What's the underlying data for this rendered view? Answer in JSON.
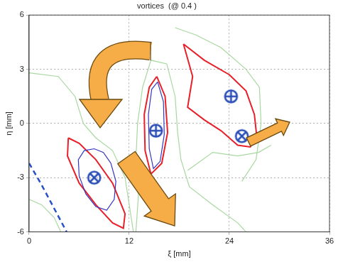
{
  "chart_data": {
    "type": "contour",
    "title": "vortices  (@ 0.4 )",
    "x_label": "ξ [mm]",
    "y_label": "η [mm]",
    "xlim": [
      0,
      36
    ],
    "ylim": [
      -6,
      6
    ],
    "xticks": [
      0,
      12,
      24,
      36
    ],
    "yticks": [
      -6,
      -3,
      0,
      3,
      6
    ],
    "grid": true,
    "series": [
      {
        "type": "line",
        "color": "#a8d8a0",
        "line_style": "solid",
        "x": [
          0,
          3.5,
          5.5,
          6.5,
          8,
          10,
          11.5,
          12,
          12.5
        ],
        "values": [
          2.8,
          2.6,
          1.5,
          0,
          -0.8,
          -1.5,
          -3,
          -4.5,
          -6
        ]
      },
      {
        "type": "line",
        "color": "#a8d8a0",
        "line_style": "solid",
        "x": [
          12.8,
          13.1,
          12.8,
          13,
          13.6,
          14.6,
          16.5,
          17.5,
          17.8,
          18.2,
          19.2,
          22,
          25,
          26
        ],
        "values": [
          -6,
          -4,
          -2,
          0,
          2,
          3.5,
          3.3,
          1.5,
          -0.5,
          -2,
          -3.5,
          -4.5,
          -5.5,
          -6
        ]
      },
      {
        "type": "line",
        "color": "#a8d8a0",
        "line_style": "solid",
        "x": [
          17.5,
          20,
          23,
          26,
          27.6,
          27.8,
          27.2,
          25.5
        ],
        "values": [
          5.3,
          4.9,
          4.2,
          3,
          2,
          0,
          -2,
          -3.2
        ]
      },
      {
        "type": "line",
        "color": "#a8d8a0",
        "line_style": "solid",
        "x": [
          19,
          22,
          25,
          27.5,
          29
        ],
        "values": [
          -2.6,
          -1.6,
          -1.8,
          -1.6,
          -1.2
        ]
      },
      {
        "type": "line",
        "color": "#a8d8a0",
        "line_style": "solid",
        "x": [
          0,
          1.5,
          3,
          3.8
        ],
        "values": [
          -4.2,
          -4.5,
          -5.2,
          -6
        ]
      },
      {
        "type": "line",
        "color": "#2850c8",
        "line_style": "dashed",
        "x": [
          0,
          1.5,
          3,
          4.5
        ],
        "values": [
          -2.2,
          -3.4,
          -4.7,
          -6
        ]
      },
      {
        "type": "line",
        "color": "#3434c0",
        "line_style": "solid",
        "x": [
          9.8,
          10.4,
          10.2,
          9.3,
          8,
          6.8,
          6,
          5.9,
          6.6,
          7.8,
          8.9,
          9.8
        ],
        "values": [
          -2.2,
          -3.2,
          -4.2,
          -4.8,
          -4.6,
          -3.9,
          -2.9,
          -2,
          -1.5,
          -1.4,
          -1.6,
          -2.2
        ]
      },
      {
        "type": "line",
        "color": "#3434c0",
        "line_style": "solid",
        "x": [
          15.4,
          16.1,
          16.2,
          15.7,
          14.9,
          14.4,
          14.3,
          14.7,
          15.4
        ],
        "values": [
          2.3,
          1.2,
          -0.6,
          -2.1,
          -2.5,
          -1.4,
          0.5,
          1.9,
          2.3
        ]
      },
      {
        "type": "line",
        "color": "#e8202a",
        "line_style": "solid",
        "x": [
          4.7,
          6,
          8,
          10,
          11.5,
          11.3,
          10,
          8,
          6,
          4.6,
          4.7
        ],
        "values": [
          -0.8,
          -1.1,
          -2,
          -3.3,
          -5,
          -5.8,
          -5.5,
          -4.5,
          -3.3,
          -1.8,
          -0.8
        ]
      },
      {
        "type": "line",
        "color": "#e8202a",
        "line_style": "solid",
        "x": [
          15.3,
          16.3,
          16.6,
          15.9,
          14.6,
          13.9,
          13.8,
          14.4,
          15.3
        ],
        "values": [
          2.6,
          1.5,
          -0.5,
          -2.2,
          -2.8,
          -1.5,
          0.5,
          2.0,
          2.6
        ]
      },
      {
        "type": "line",
        "color": "#e8202a",
        "line_style": "solid",
        "x": [
          18.5,
          21,
          24,
          26,
          27,
          27.3,
          26.5,
          25,
          23,
          21,
          19,
          19.6,
          18.5
        ],
        "values": [
          4.4,
          3.5,
          2.7,
          1.8,
          0.5,
          -0.8,
          -1.3,
          -1.2,
          -0.4,
          0.2,
          0.9,
          2.6,
          4.4
        ]
      },
      {
        "type": "scatter",
        "marker": "circle_cross",
        "color": "#2a4db5",
        "x": [
          7.8,
          25.5
        ],
        "values": [
          -3,
          -0.7
        ]
      },
      {
        "type": "scatter",
        "marker": "circle_plus",
        "color": "#2a4db5",
        "x": [
          15.2,
          24.2
        ],
        "values": [
          -0.4,
          1.5
        ]
      }
    ]
  }
}
